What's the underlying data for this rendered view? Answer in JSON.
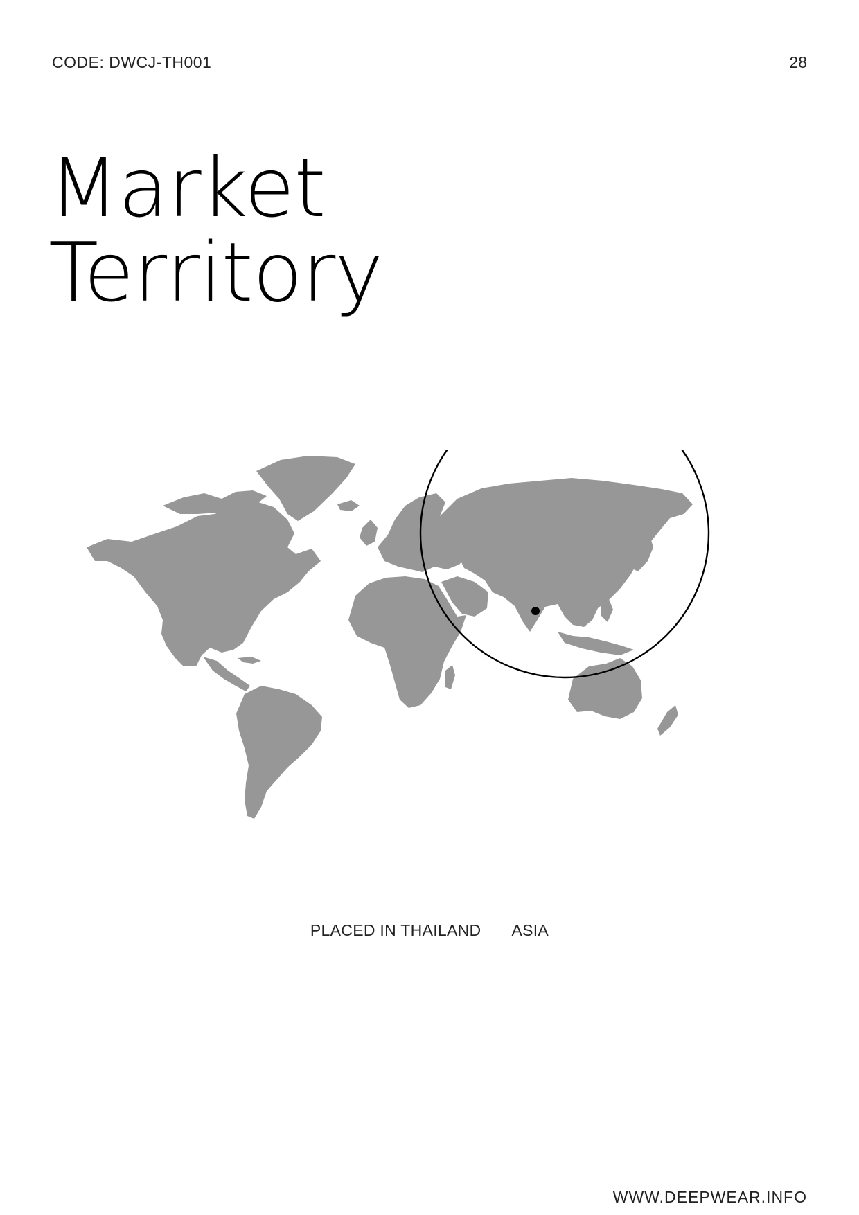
{
  "header": {
    "code": "CODE: DWCJ-TH001",
    "page_number": "28"
  },
  "title": {
    "line1": "Market",
    "line2": "Territory"
  },
  "map": {
    "land_color": "#979797",
    "highlighted_region": "Asia",
    "marker": "Thailand"
  },
  "caption": {
    "location": "PLACED IN THAILAND",
    "region": "ASIA"
  },
  "footer": {
    "website": "WWW.DEEPWEAR.INFO"
  }
}
